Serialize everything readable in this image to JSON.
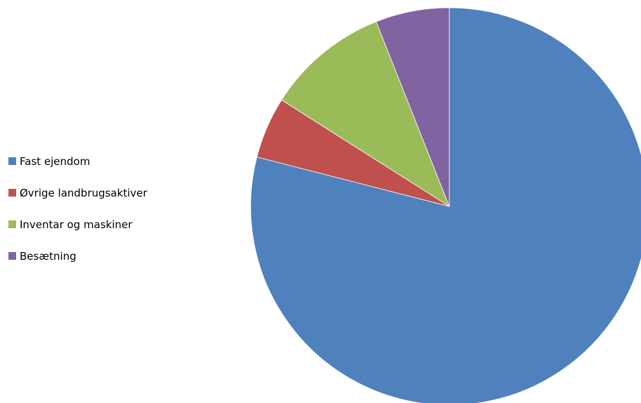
{
  "chart_data": {
    "type": "pie",
    "title": "",
    "categories": [
      "Fast ejendom",
      "Øvrige landbrugsaktiver",
      "Inventar og maskiner",
      "Besætning"
    ],
    "values": [
      79,
      5,
      10,
      6
    ],
    "value_unit": "percent (estimated share)",
    "colors": [
      "#4F81BD",
      "#C0504D",
      "#9BBB59",
      "#8064A2"
    ],
    "start_angle": "12 o'clock",
    "direction": "clockwise",
    "legend_position": "left"
  }
}
